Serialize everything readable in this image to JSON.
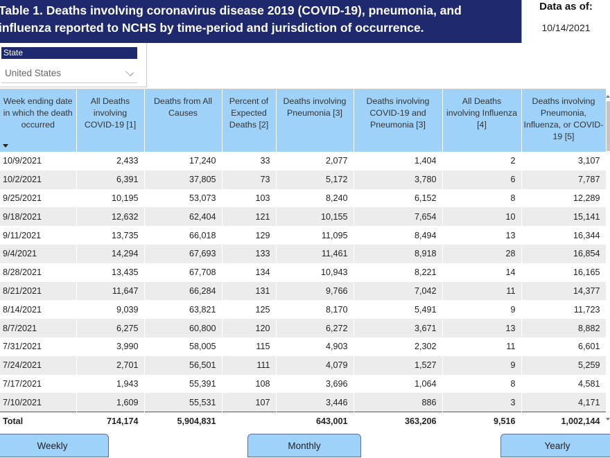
{
  "header": {
    "title_line1": "Table 1. Deaths involving coronavirus disease 2019 (COVID-19), pneumonia, and",
    "title_line2": "influenza reported to NCHS by time-period and jurisdiction of occurrence.",
    "as_of_label": "Data as of:",
    "as_of_value": "10/14/2021"
  },
  "slicer": {
    "label": "State",
    "selected": "United States",
    "icon": "chevron-down-icon"
  },
  "table": {
    "columns": [
      "Week ending date in which the death occurred",
      "All Deaths involving COVID-19 [1]",
      "Deaths from All Causes",
      "Percent of Expected Deaths [2]",
      "Deaths involving Pneumonia [3]",
      "Deaths involving COVID-19 and Pneumonia [3]",
      "All Deaths involving Influenza [4]",
      "Deaths involving Pneumonia, Influenza, or COVID-19 [5]"
    ],
    "rows": [
      [
        "10/9/2021",
        "2,433",
        "17,240",
        "33",
        "2,077",
        "1,404",
        "2",
        "3,107"
      ],
      [
        "10/2/2021",
        "6,391",
        "37,805",
        "73",
        "5,172",
        "3,780",
        "6",
        "7,787"
      ],
      [
        "9/25/2021",
        "10,195",
        "53,073",
        "103",
        "8,240",
        "6,152",
        "8",
        "12,289"
      ],
      [
        "9/18/2021",
        "12,632",
        "62,404",
        "121",
        "10,155",
        "7,654",
        "10",
        "15,141"
      ],
      [
        "9/11/2021",
        "13,735",
        "66,018",
        "129",
        "11,095",
        "8,494",
        "13",
        "16,344"
      ],
      [
        "9/4/2021",
        "14,294",
        "67,693",
        "133",
        "11,461",
        "8,918",
        "28",
        "16,854"
      ],
      [
        "8/28/2021",
        "13,435",
        "67,708",
        "134",
        "10,943",
        "8,221",
        "14",
        "16,165"
      ],
      [
        "8/21/2021",
        "11,647",
        "66,284",
        "131",
        "9,766",
        "7,042",
        "11",
        "14,377"
      ],
      [
        "8/14/2021",
        "9,039",
        "63,821",
        "125",
        "8,170",
        "5,491",
        "9",
        "11,723"
      ],
      [
        "8/7/2021",
        "6,275",
        "60,800",
        "120",
        "6,272",
        "3,671",
        "13",
        "8,882"
      ],
      [
        "7/31/2021",
        "3,990",
        "58,005",
        "115",
        "4,903",
        "2,302",
        "11",
        "6,601"
      ],
      [
        "7/24/2021",
        "2,701",
        "56,501",
        "111",
        "4,079",
        "1,527",
        "9",
        "5,259"
      ],
      [
        "7/17/2021",
        "1,943",
        "55,391",
        "108",
        "3,696",
        "1,064",
        "8",
        "4,581"
      ],
      [
        "7/10/2021",
        "1,609",
        "55,531",
        "107",
        "3,446",
        "886",
        "3",
        "4,171"
      ]
    ],
    "total": [
      "Total",
      "714,174",
      "5,904,831",
      "",
      "643,001",
      "363,206",
      "9,516",
      "1,002,144"
    ]
  },
  "buttons": {
    "weekly": "Weekly",
    "monthly": "Monthly",
    "yearly": "Yearly"
  },
  "colors": {
    "title_bg": "#1f2a6e",
    "header_bg": "#9fd2f8",
    "stripe": "#ececec"
  }
}
